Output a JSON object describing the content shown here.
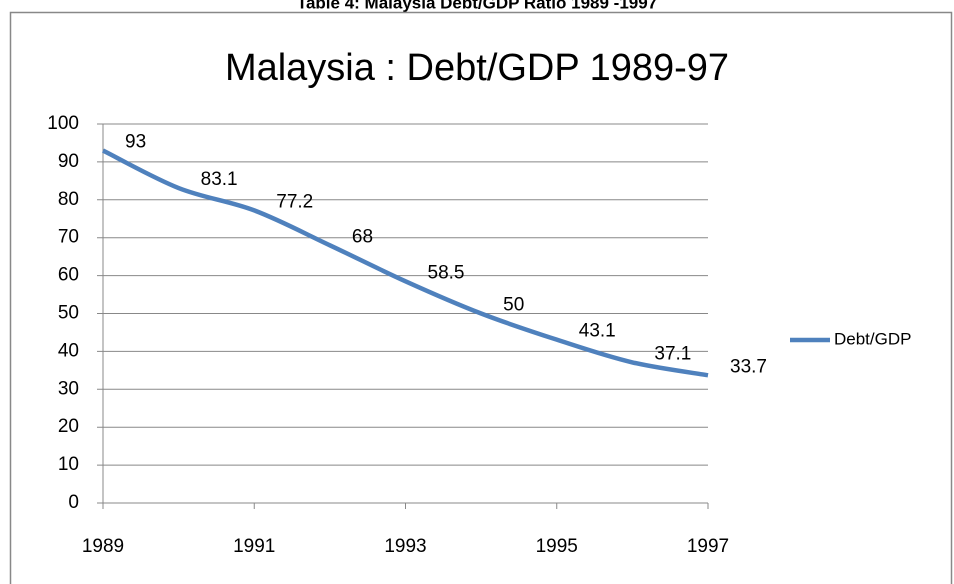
{
  "caption": "Table 4: Malaysia  Debt/GDP  Ratio 1989 -1997",
  "chart_data": {
    "type": "line",
    "title": "Malaysia : Debt/GDP 1989-97",
    "x": [
      1989,
      1990,
      1991,
      1992,
      1993,
      1994,
      1995,
      1996,
      1997
    ],
    "series": [
      {
        "name": "Debt/GDP",
        "color": "#4f81bd",
        "values": [
          93,
          83.1,
          77.2,
          68,
          58.5,
          50,
          43.1,
          37.1,
          33.7
        ]
      }
    ],
    "xlim": [
      1989,
      1997
    ],
    "xticks": [
      1989,
      1991,
      1993,
      1995,
      1997
    ],
    "ylim": [
      0,
      100
    ],
    "yticks": [
      0,
      10,
      20,
      30,
      40,
      50,
      60,
      70,
      80,
      90,
      100
    ],
    "grid": true,
    "legend": "right"
  }
}
